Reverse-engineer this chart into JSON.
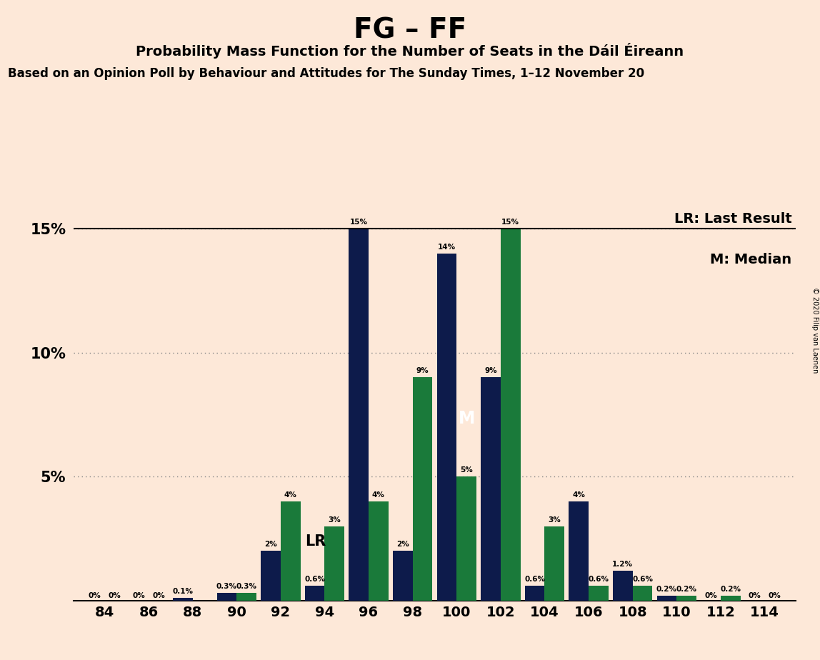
{
  "title": "FG – FF",
  "subtitle1": "Probability Mass Function for the Number of Seats in the Dáil Éireann",
  "subtitle2": "Based on an Opinion Poll by Behaviour and Attitudes for The Sunday Times, 1–12 November 20",
  "watermark": "© 2020 Filip van Laenen",
  "legend_lr": "LR: Last Result",
  "legend_m": "M: Median",
  "background_color": "#fde8d8",
  "bar_color_navy": "#0d1b4b",
  "bar_color_green": "#1a7a3a",
  "seats": [
    84,
    86,
    88,
    90,
    92,
    94,
    96,
    98,
    100,
    102,
    104,
    106,
    108,
    110,
    112,
    114
  ],
  "navy_values": [
    0.0,
    0.0,
    0.1,
    0.3,
    2.0,
    0.6,
    15.0,
    2.0,
    14.0,
    9.0,
    0.6,
    4.0,
    1.2,
    0.2,
    0.0,
    0.0
  ],
  "green_values": [
    0.0,
    0.0,
    0.0,
    0.3,
    4.0,
    3.0,
    4.0,
    9.0,
    5.0,
    15.0,
    3.0,
    0.6,
    0.6,
    0.2,
    0.2,
    0.0
  ],
  "navy_labels": [
    "0%",
    "0%",
    "0.1%",
    "0.3%",
    "2%",
    "0.6%",
    "15%",
    "2%",
    "14%",
    "9%",
    "0.6%",
    "4%",
    "1.2%",
    "0.2%",
    "0%",
    "0%"
  ],
  "green_labels": [
    "0%",
    "0%",
    "",
    "0.3%",
    "4%",
    "3%",
    "4%",
    "9%",
    "5%",
    "15%",
    "3%",
    "0.6%",
    "0.6%",
    "0.2%",
    "0.2%",
    "0%"
  ],
  "ylim": [
    0,
    16.5
  ],
  "label_fontsize": 7.5,
  "title_fontsize": 28,
  "subtitle1_fontsize": 14,
  "subtitle2_fontsize": 12
}
